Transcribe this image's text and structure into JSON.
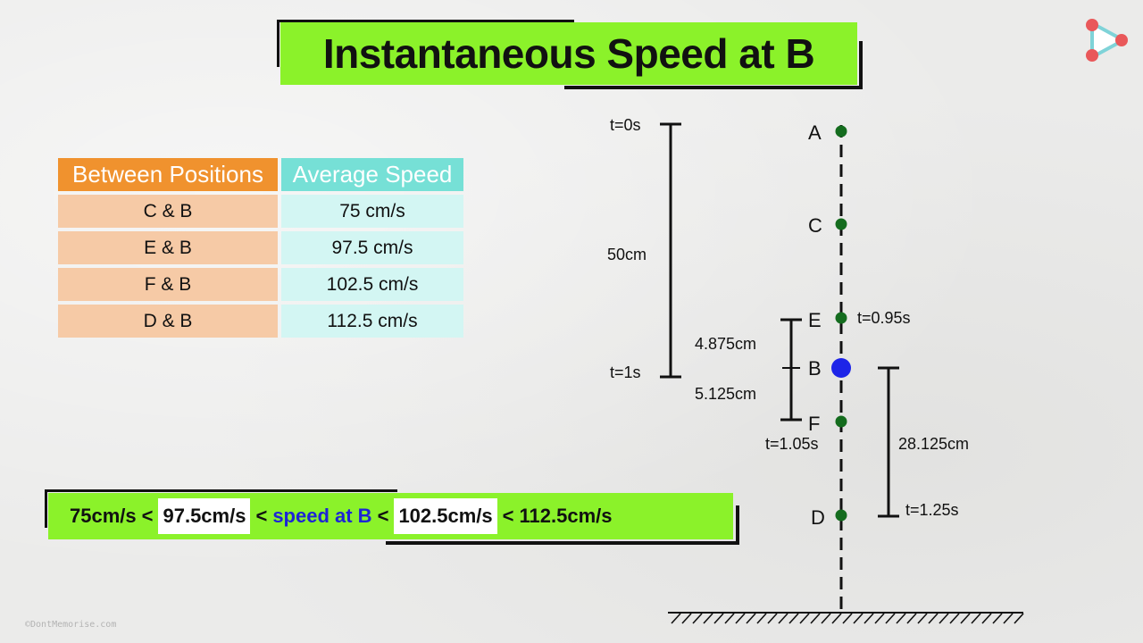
{
  "title": "Instantaneous Speed at B",
  "table": {
    "headers": [
      "Between Positions",
      "Average Speed"
    ],
    "rows": [
      {
        "positions": "C & B",
        "speed": "75 cm/s"
      },
      {
        "positions": "E & B",
        "speed": "97.5 cm/s"
      },
      {
        "positions": "F & B",
        "speed": "102.5 cm/s"
      },
      {
        "positions": "D & B",
        "speed": "112.5 cm/s"
      }
    ]
  },
  "inequality": {
    "v1": "75cm/s",
    "lt": "<",
    "v2": "97.5cm/s",
    "mid": "speed at B",
    "v3": "102.5cm/s",
    "v4": "112.5cm/s"
  },
  "diagram": {
    "points": {
      "A": "A",
      "C": "C",
      "E": "E",
      "B": "B",
      "F": "F",
      "D": "D"
    },
    "times": {
      "t0": "t=0s",
      "t1": "t=1s",
      "tE": "t=0.95s",
      "tF": "t=1.05s",
      "tD": "t=1.25s"
    },
    "distances": {
      "AB": "50cm",
      "EB": "4.875cm",
      "BF": "5.125cm",
      "BD": "28.125cm"
    },
    "colors": {
      "point": "#146c1e",
      "highlight": "#1d24e8"
    }
  },
  "watermark": "©DontMemorise.com",
  "logo_icon": "play-logo-icon"
}
